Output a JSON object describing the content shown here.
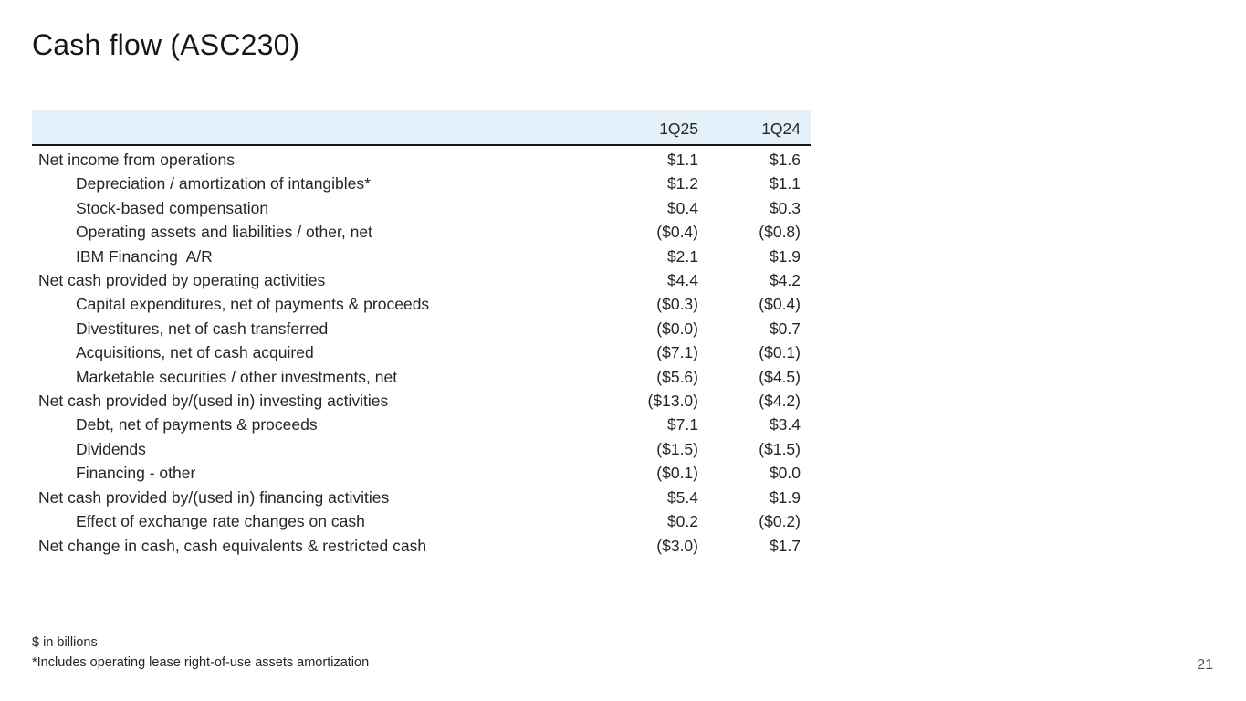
{
  "slide": {
    "title": "Cash flow (ASC230)",
    "page_number": "21",
    "footnote_units": "$ in billions",
    "footnote_asterisk": "*Includes operating lease right-of-use assets amortization"
  },
  "table": {
    "columns": [
      "1Q25",
      "1Q24"
    ],
    "rows": [
      {
        "label": "Net income from operations",
        "indent": false,
        "q1_2025": "$1.1",
        "q1_2024": "$1.6"
      },
      {
        "label": "Depreciation / amortization of intangibles*",
        "indent": true,
        "q1_2025": "$1.2",
        "q1_2024": "$1.1"
      },
      {
        "label": "Stock-based compensation",
        "indent": true,
        "q1_2025": "$0.4",
        "q1_2024": "$0.3"
      },
      {
        "label": "Operating assets and liabilities / other, net",
        "indent": true,
        "q1_2025": "($0.4)",
        "q1_2024": "($0.8)"
      },
      {
        "label": "IBM Financing  A/R",
        "indent": true,
        "q1_2025": "$2.1",
        "q1_2024": "$1.9"
      },
      {
        "label": "Net cash provided by operating activities",
        "indent": false,
        "q1_2025": "$4.4",
        "q1_2024": "$4.2"
      },
      {
        "label": "Capital expenditures, net of payments & proceeds",
        "indent": true,
        "q1_2025": "($0.3)",
        "q1_2024": "($0.4)"
      },
      {
        "label": "Divestitures, net of cash transferred",
        "indent": true,
        "q1_2025": "($0.0)",
        "q1_2024": "$0.7"
      },
      {
        "label": "Acquisitions, net of cash acquired",
        "indent": true,
        "q1_2025": "($7.1)",
        "q1_2024": "($0.1)"
      },
      {
        "label": "Marketable securities / other investments, net",
        "indent": true,
        "q1_2025": "($5.6)",
        "q1_2024": "($4.5)"
      },
      {
        "label": "Net cash provided by/(used in) investing activities",
        "indent": false,
        "q1_2025": "($13.0)",
        "q1_2024": "($4.2)"
      },
      {
        "label": "Debt, net of payments & proceeds",
        "indent": true,
        "q1_2025": "$7.1",
        "q1_2024": "$3.4"
      },
      {
        "label": "Dividends",
        "indent": true,
        "q1_2025": "($1.5)",
        "q1_2024": "($1.5)"
      },
      {
        "label": "Financing - other",
        "indent": true,
        "q1_2025": "($0.1)",
        "q1_2024": "$0.0"
      },
      {
        "label": "Net cash provided by/(used in) financing activities",
        "indent": false,
        "q1_2025": "$5.4",
        "q1_2024": "$1.9"
      },
      {
        "label": "Effect of exchange rate changes on cash",
        "indent": true,
        "q1_2025": "$0.2",
        "q1_2024": "($0.2)"
      },
      {
        "label": "Net change in cash, cash equivalents & restricted cash",
        "indent": false,
        "q1_2025": "($3.0)",
        "q1_2024": "$1.7"
      }
    ]
  },
  "colors": {
    "header_background": "#e4f1fa",
    "header_underline": "#161616",
    "text": "#262626",
    "page_number": "#4d4d4d"
  }
}
